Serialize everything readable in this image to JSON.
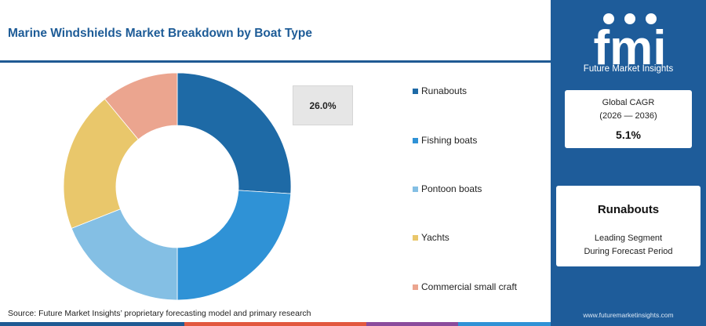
{
  "header": {
    "title": "Marine Windshields Market Breakdown by Boat Type"
  },
  "chart_data": {
    "type": "pie",
    "variant": "donut",
    "categories": [
      "Runabouts",
      "Fishing boats",
      "Pontoon boats",
      "Yachts",
      "Commercial small craft"
    ],
    "values": [
      26.0,
      24.0,
      19.0,
      20.0,
      11.0
    ],
    "unit": "%",
    "highlight_label": "26.0%",
    "colors": [
      "#1e6aa6",
      "#2f92d6",
      "#84bfe4",
      "#e9c76b",
      "#eba58f"
    ],
    "legend_position": "right"
  },
  "legend": {
    "items": [
      {
        "label": "Runabouts",
        "color": "#1e6aa6"
      },
      {
        "label": "Fishing boats",
        "color": "#2f92d6"
      },
      {
        "label": "Pontoon boats",
        "color": "#84bfe4"
      },
      {
        "label": "Yachts",
        "color": "#e9c76b"
      },
      {
        "label": "Commercial small craft",
        "color": "#eba58f"
      }
    ]
  },
  "footer": {
    "source": "Source: Future Market Insights’ proprietary forecasting model and primary research",
    "bar_colors": [
      "#1f5a93",
      "#e2583e",
      "#8a4b9c",
      "#2f92d6"
    ]
  },
  "sidebar": {
    "logo_text": "fmi",
    "logo_subtitle": "Future Market Insights",
    "cagr": {
      "title": "Global CAGR",
      "period": "(2026 — 2036)",
      "value": "5.1%"
    },
    "segment": {
      "name": "Runabouts",
      "line1": "Leading Segment",
      "line2": "During Forecast Period"
    },
    "website": "www.futuremarketinsights.com",
    "background_color": "#1e5c9a"
  }
}
